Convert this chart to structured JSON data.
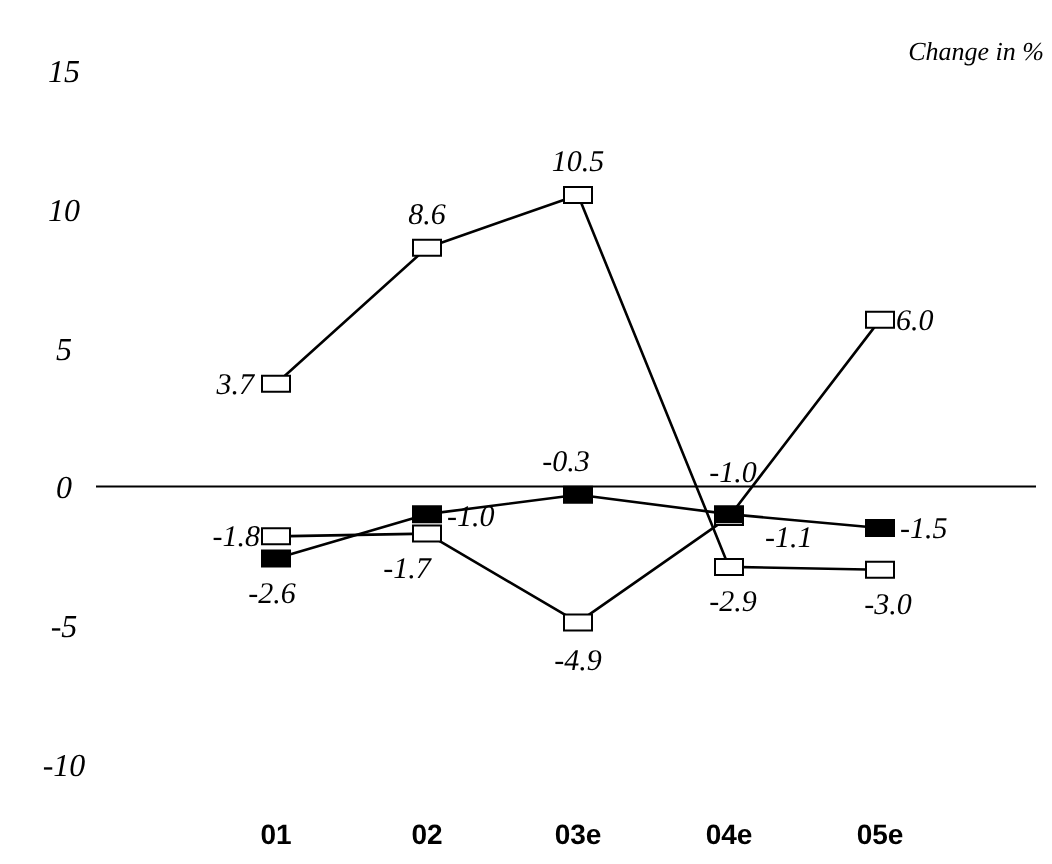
{
  "chart_data": {
    "type": "line",
    "ylabel": "Change in %",
    "categories": [
      "01",
      "02",
      "03e",
      "04e",
      "05e"
    ],
    "ylim": [
      -10,
      15
    ],
    "yticks": [
      -10,
      -5,
      0,
      5,
      10,
      15
    ],
    "marker": "square",
    "line_style": "solid",
    "series": [
      {
        "color": "#ffffff",
        "values": [
          3.7,
          8.6,
          10.5,
          -2.9,
          -3.0
        ],
        "value_labels": [
          "3.7",
          "8.6",
          "10.5",
          "-2.9",
          "-3.0"
        ]
      },
      {
        "color": "#ffffff",
        "values": [
          -1.8,
          -1.7,
          -4.9,
          -1.1,
          6.0
        ],
        "value_labels": [
          "-1.8",
          "-1.7",
          "-4.9",
          "-1.1",
          "6.0"
        ]
      },
      {
        "color": "#000000",
        "values": [
          -2.6,
          -1.0,
          -0.3,
          -1.0,
          -1.5
        ],
        "value_labels": [
          "-2.6",
          "-1.0",
          "-0.3",
          "-1.0",
          "-1.5"
        ]
      }
    ]
  }
}
